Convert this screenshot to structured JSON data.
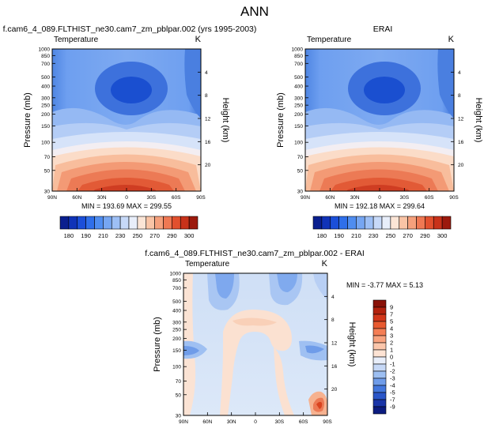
{
  "figure": {
    "title": "ANN",
    "left_title": "f.cam6_4_089.FLTHIST_ne30.cam7_zm_pblpar.002 (yrs 1995-2003)",
    "right_title": "ERAI",
    "bottom_title": "f.cam6_4_089.FLTHIST_ne30.cam7_zm_pblpar.002 - ERAI"
  },
  "chart_data": [
    {
      "id": "model",
      "type": "contour",
      "variable": "Temperature",
      "units": "K",
      "ylabel": "Pressure (mb)",
      "ylabel_right": "Height (km)",
      "x_ticks": [
        "90N",
        "60N",
        "30N",
        "0",
        "30S",
        "60S",
        "90S"
      ],
      "y_ticks": [
        "30",
        "50",
        "70",
        "100",
        "150",
        "200",
        "250",
        "300",
        "400",
        "500",
        "700",
        "850",
        "1000"
      ],
      "y_ticks_right": [
        "20",
        "16",
        "12",
        "8",
        "4"
      ],
      "ylim": [
        1000,
        30
      ],
      "xlim": [
        90,
        -90
      ],
      "min": 193.69,
      "max": 299.55,
      "stats_text": "MIN = 193.69  MAX = 299.55",
      "grid": false
    },
    {
      "id": "obs",
      "type": "contour",
      "variable": "Temperature",
      "units": "K",
      "ylabel": "Pressure (mb)",
      "ylabel_right": "Height (km)",
      "x_ticks": [
        "90N",
        "60N",
        "30N",
        "0",
        "30S",
        "60S",
        "90S"
      ],
      "y_ticks": [
        "30",
        "50",
        "70",
        "100",
        "150",
        "200",
        "250",
        "300",
        "400",
        "500",
        "700",
        "850",
        "1000"
      ],
      "y_ticks_right": [
        "20",
        "16",
        "12",
        "8",
        "4"
      ],
      "ylim": [
        1000,
        30
      ],
      "xlim": [
        90,
        -90
      ],
      "min": 192.18,
      "max": 299.64,
      "stats_text": "MIN = 192.18  MAX = 299.64",
      "grid": false
    },
    {
      "id": "diff",
      "type": "contour",
      "variable": "Temperature",
      "units": "K",
      "ylabel": "Pressure (mb)",
      "ylabel_right": "Height (km)",
      "x_ticks": [
        "90N",
        "60N",
        "30N",
        "0",
        "30S",
        "60S",
        "90S"
      ],
      "y_ticks": [
        "30",
        "50",
        "70",
        "100",
        "150",
        "200",
        "250",
        "300",
        "400",
        "500",
        "700",
        "850",
        "1000"
      ],
      "y_ticks_right": [
        "20",
        "16",
        "12",
        "8",
        "4"
      ],
      "ylim": [
        1000,
        30
      ],
      "xlim": [
        90,
        -90
      ],
      "min": -3.77,
      "max": 5.13,
      "stats_text": "MIN = -3.77  MAX =   5.13",
      "grid": false
    }
  ],
  "colorbars": {
    "abs": {
      "labels": [
        "180",
        "190",
        "210",
        "230",
        "250",
        "270",
        "290",
        "300"
      ],
      "colors": [
        "#0a1f8f",
        "#1033b8",
        "#1b4fd9",
        "#2f6fea",
        "#4f8df0",
        "#76a6f2",
        "#9dbff5",
        "#c7d9f8",
        "#e8eefa",
        "#fbe5d6",
        "#f9c4a6",
        "#f5a07c",
        "#ef7853",
        "#e2502e",
        "#c8321a",
        "#9c1a0d"
      ]
    },
    "diff": {
      "labels": [
        "9",
        "7",
        "5",
        "4",
        "3",
        "2",
        "1",
        "0",
        "-1",
        "-2",
        "-3",
        "-4",
        "-5",
        "-7",
        "-9"
      ],
      "colors": [
        "#8a1208",
        "#b3220e",
        "#d2371a",
        "#e85a30",
        "#f47e55",
        "#f8a37f",
        "#fbc6ab",
        "#fde3d4",
        "#e8eefa",
        "#c6d8f6",
        "#9dbff2",
        "#6f9ce9",
        "#4377dd",
        "#2a56c9",
        "#1a35a8",
        "#0c1c80"
      ]
    }
  }
}
